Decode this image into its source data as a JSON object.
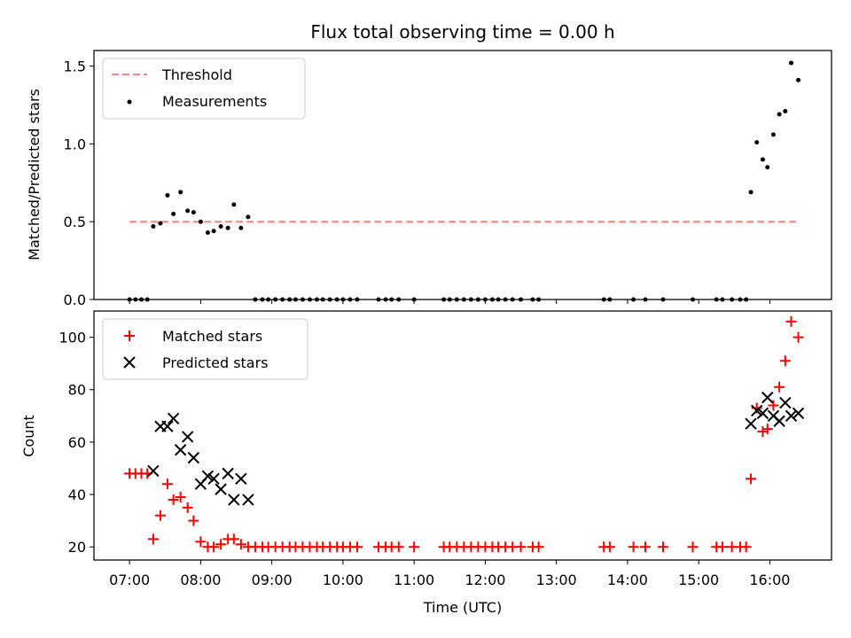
{
  "chart_data": [
    {
      "type": "scatter",
      "title": "Flux total observing time = 0.00 h",
      "xlabel": "",
      "ylabel": "Matched/Predicted stars",
      "xlim": [
        "06:30",
        "16:52"
      ],
      "ylim": [
        0,
        1.6
      ],
      "yticks": [
        0.0,
        0.5,
        1.0,
        1.5
      ],
      "ytick_labels": [
        "0.0",
        "0.5",
        "1.0",
        "1.5"
      ],
      "legend": "top-left",
      "threshold": {
        "name": "Threshold",
        "value": 0.5,
        "x": [
          "07:00",
          "16:25"
        ],
        "color": "#ff8080"
      },
      "series": [
        {
          "name": "Measurements",
          "color": "#000000",
          "x": [
            "07:00",
            "07:05",
            "07:10",
            "07:15",
            "07:20",
            "07:26",
            "07:32",
            "07:37",
            "07:43",
            "07:49",
            "07:54",
            "08:00",
            "08:06",
            "08:11",
            "08:17",
            "08:23",
            "08:28",
            "08:34",
            "08:40",
            "08:46",
            "08:52",
            "08:57",
            "09:03",
            "09:09",
            "09:15",
            "09:20",
            "09:26",
            "09:32",
            "09:38",
            "09:43",
            "09:49",
            "09:55",
            "10:00",
            "10:06",
            "10:12",
            "10:30",
            "10:36",
            "10:41",
            "10:47",
            "11:00",
            "11:25",
            "11:30",
            "11:36",
            "11:42",
            "11:48",
            "11:54",
            "12:00",
            "12:06",
            "12:11",
            "12:17",
            "12:23",
            "12:30",
            "12:40",
            "12:45",
            "13:40",
            "13:45",
            "14:05",
            "14:15",
            "14:30",
            "14:55",
            "15:15",
            "15:20",
            "15:28",
            "15:35",
            "15:40",
            "15:44",
            "15:49",
            "15:54",
            "15:58",
            "16:03",
            "16:08",
            "16:13",
            "16:18",
            "16:24"
          ],
          "y": [
            0,
            0,
            0,
            0,
            0.47,
            0.49,
            0.67,
            0.55,
            0.69,
            0.57,
            0.56,
            0.5,
            0.43,
            0.44,
            0.47,
            0.46,
            0.61,
            0.46,
            0.53,
            0,
            0,
            0,
            0,
            0,
            0,
            0,
            0,
            0,
            0,
            0,
            0,
            0,
            0,
            0,
            0,
            0,
            0,
            0,
            0,
            0,
            0,
            0,
            0,
            0,
            0,
            0,
            0,
            0,
            0,
            0,
            0,
            0,
            0,
            0,
            0,
            0,
            0,
            0,
            0,
            0,
            0,
            0,
            0,
            0,
            0,
            0.69,
            1.01,
            0.9,
            0.85,
            1.06,
            1.19,
            1.21,
            1.52,
            1.41
          ]
        }
      ]
    },
    {
      "type": "scatter",
      "title": "",
      "xlabel": "Time (UTC)",
      "ylabel": "Count",
      "xlim": [
        "06:30",
        "16:52"
      ],
      "ylim": [
        15,
        110
      ],
      "yticks": [
        20,
        40,
        60,
        80,
        100
      ],
      "ytick_labels": [
        "20",
        "40",
        "60",
        "80",
        "100"
      ],
      "xticks": [
        "07:00",
        "08:00",
        "09:00",
        "10:00",
        "11:00",
        "12:00",
        "13:00",
        "14:00",
        "15:00",
        "16:00"
      ],
      "legend": "top-left",
      "series": [
        {
          "name": "Matched stars",
          "marker": "plus",
          "color": "#ff0000",
          "x": [
            "07:00",
            "07:05",
            "07:10",
            "07:15",
            "07:20",
            "07:26",
            "07:32",
            "07:37",
            "07:43",
            "07:49",
            "07:54",
            "08:00",
            "08:06",
            "08:11",
            "08:17",
            "08:23",
            "08:28",
            "08:34",
            "08:40",
            "08:46",
            "08:52",
            "08:57",
            "09:03",
            "09:09",
            "09:15",
            "09:20",
            "09:26",
            "09:32",
            "09:38",
            "09:43",
            "09:49",
            "09:55",
            "10:00",
            "10:06",
            "10:12",
            "10:30",
            "10:36",
            "10:41",
            "10:47",
            "11:00",
            "11:25",
            "11:30",
            "11:36",
            "11:42",
            "11:48",
            "11:54",
            "12:00",
            "12:06",
            "12:11",
            "12:17",
            "12:23",
            "12:30",
            "12:40",
            "12:45",
            "13:40",
            "13:45",
            "14:05",
            "14:15",
            "14:30",
            "14:55",
            "15:15",
            "15:20",
            "15:28",
            "15:35",
            "15:40",
            "15:44",
            "15:49",
            "15:54",
            "15:58",
            "16:03",
            "16:08",
            "16:13",
            "16:18",
            "16:24"
          ],
          "y": [
            48,
            48,
            48,
            48,
            23,
            32,
            44,
            38,
            39,
            35,
            30,
            22,
            20,
            20,
            21,
            23,
            23,
            21,
            20,
            20,
            20,
            20,
            20,
            20,
            20,
            20,
            20,
            20,
            20,
            20,
            20,
            20,
            20,
            20,
            20,
            20,
            20,
            20,
            20,
            20,
            20,
            20,
            20,
            20,
            20,
            20,
            20,
            20,
            20,
            20,
            20,
            20,
            20,
            20,
            20,
            20,
            20,
            20,
            20,
            20,
            20,
            20,
            20,
            20,
            20,
            46,
            73,
            64,
            65,
            74,
            81,
            91,
            106,
            100
          ]
        },
        {
          "name": "Predicted stars",
          "marker": "x",
          "color": "#000000",
          "x": [
            "07:20",
            "07:26",
            "07:32",
            "07:37",
            "07:43",
            "07:49",
            "07:54",
            "08:00",
            "08:06",
            "08:11",
            "08:17",
            "08:23",
            "08:28",
            "08:34",
            "08:40",
            "15:44",
            "15:49",
            "15:54",
            "15:58",
            "16:03",
            "16:08",
            "16:13",
            "16:18",
            "16:24"
          ],
          "y": [
            49,
            66,
            66,
            69,
            57,
            62,
            54,
            44,
            47,
            46,
            42,
            48,
            38,
            46,
            38,
            67,
            72,
            71,
            77,
            70,
            68,
            75,
            70,
            71
          ]
        }
      ]
    }
  ]
}
